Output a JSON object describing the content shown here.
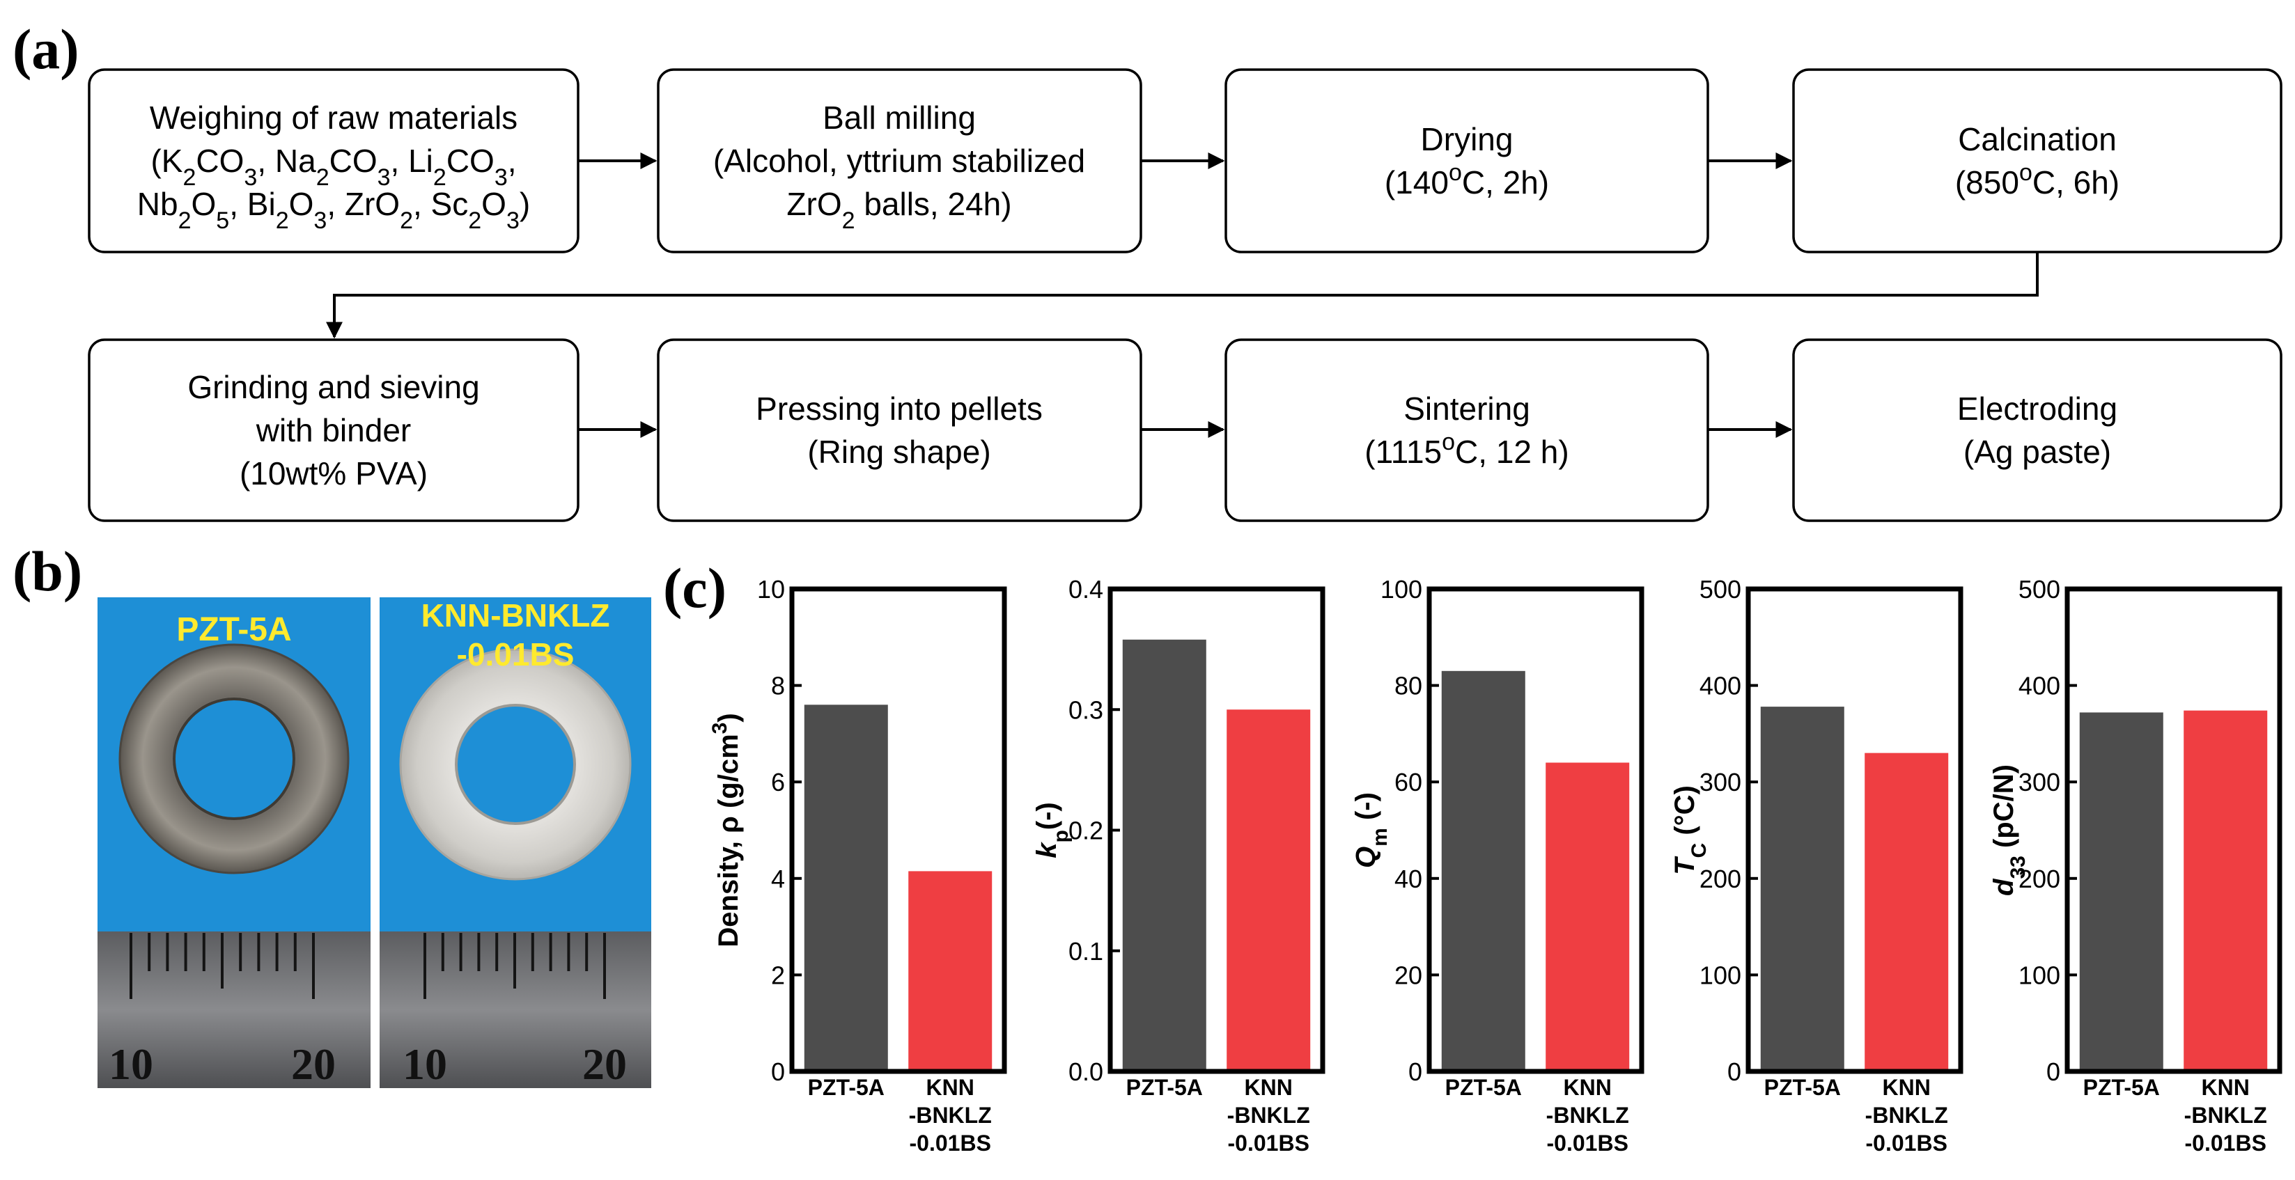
{
  "panel_labels": {
    "a": "(a)",
    "b": "(b)",
    "c": "(c)"
  },
  "flowchart": {
    "steps": [
      {
        "lines": [
          [
            {
              "t": "Weighing of raw materials"
            }
          ],
          [
            {
              "t": "(K"
            },
            {
              "t": "2",
              "s": "sub"
            },
            {
              "t": "CO"
            },
            {
              "t": "3",
              "s": "sub"
            },
            {
              "t": ", Na"
            },
            {
              "t": "2",
              "s": "sub"
            },
            {
              "t": "CO"
            },
            {
              "t": "3",
              "s": "sub"
            },
            {
              "t": ", Li"
            },
            {
              "t": "2",
              "s": "sub"
            },
            {
              "t": "CO"
            },
            {
              "t": "3",
              "s": "sub"
            },
            {
              "t": ","
            }
          ],
          [
            {
              "t": "Nb"
            },
            {
              "t": "2",
              "s": "sub"
            },
            {
              "t": "O"
            },
            {
              "t": "5",
              "s": "sub"
            },
            {
              "t": ", Bi"
            },
            {
              "t": "2",
              "s": "sub"
            },
            {
              "t": "O"
            },
            {
              "t": "3",
              "s": "sub"
            },
            {
              "t": ", ZrO"
            },
            {
              "t": "2",
              "s": "sub"
            },
            {
              "t": ", Sc"
            },
            {
              "t": "2",
              "s": "sub"
            },
            {
              "t": "O"
            },
            {
              "t": "3",
              "s": "sub"
            },
            {
              "t": ")"
            }
          ]
        ]
      },
      {
        "lines": [
          [
            {
              "t": "Ball milling"
            }
          ],
          [
            {
              "t": "(Alcohol, yttrium stabilized"
            }
          ],
          [
            {
              "t": "ZrO"
            },
            {
              "t": "2",
              "s": "sub"
            },
            {
              "t": " balls, 24h)"
            }
          ]
        ]
      },
      {
        "lines": [
          [
            {
              "t": "Drying"
            }
          ],
          [
            {
              "t": "(140"
            },
            {
              "t": "o",
              "s": "sup"
            },
            {
              "t": "C, 2h)"
            }
          ]
        ]
      },
      {
        "lines": [
          [
            {
              "t": "Calcination"
            }
          ],
          [
            {
              "t": "(850"
            },
            {
              "t": "o",
              "s": "sup"
            },
            {
              "t": "C, 6h)"
            }
          ]
        ]
      },
      {
        "lines": [
          [
            {
              "t": "Grinding and sieving"
            }
          ],
          [
            {
              "t": "with binder"
            }
          ],
          [
            {
              "t": "(10wt% PVA)"
            }
          ]
        ]
      },
      {
        "lines": [
          [
            {
              "t": "Pressing into pellets"
            }
          ],
          [
            {
              "t": "(Ring shape)"
            }
          ]
        ]
      },
      {
        "lines": [
          [
            {
              "t": "Sintering"
            }
          ],
          [
            {
              "t": "(1115"
            },
            {
              "t": "o",
              "s": "sup"
            },
            {
              "t": "C, 12 h)"
            }
          ]
        ]
      },
      {
        "lines": [
          [
            {
              "t": "Electroding"
            }
          ],
          [
            {
              "t": "(Ag paste)"
            }
          ]
        ]
      }
    ]
  },
  "photos": {
    "left": {
      "label": "PZT-5A",
      "ruler_numbers": [
        "10",
        "20"
      ]
    },
    "right": {
      "label_line1": "KNN-BNKLZ",
      "label_line2": "-0.01BS",
      "ruler_numbers": [
        "10",
        "20"
      ]
    }
  },
  "colors": {
    "pzt": "#4d4d4d",
    "knn": "#ef3e42",
    "photo_bg": "#1e8fd6",
    "label_yellow": "#ffea2e"
  },
  "chart_data": [
    {
      "type": "bar",
      "ylabel": [
        {
          "t": "Density, ρ (g/cm"
        },
        {
          "t": "3",
          "s": "sup"
        },
        {
          "t": ")"
        }
      ],
      "ylim": [
        0,
        10
      ],
      "yticks": [
        "0",
        "2",
        "4",
        "6",
        "8",
        "10"
      ],
      "categories": [
        [
          "PZT-5A"
        ],
        [
          "KNN",
          "-BNKLZ",
          "-0.01BS"
        ]
      ],
      "values": [
        7.6,
        4.15
      ]
    },
    {
      "type": "bar",
      "ylabel": [
        {
          "t": "k",
          "s": "it"
        },
        {
          "t": "p",
          "s": "sub"
        },
        {
          "t": "(-)"
        }
      ],
      "ylim": [
        0,
        0.4
      ],
      "yticks": [
        "0.0",
        "0.1",
        "0.2",
        "0.3",
        "0.4"
      ],
      "categories": [
        [
          "PZT-5A"
        ],
        [
          "KNN",
          "-BNKLZ",
          "-0.01BS"
        ]
      ],
      "values": [
        0.358,
        0.3
      ]
    },
    {
      "type": "bar",
      "ylabel": [
        {
          "t": "Q",
          "s": "it"
        },
        {
          "t": "m",
          "s": "sub"
        },
        {
          "t": " (-)"
        }
      ],
      "ylim": [
        0,
        100
      ],
      "yticks": [
        "0",
        "20",
        "40",
        "60",
        "80",
        "100"
      ],
      "categories": [
        [
          "PZT-5A"
        ],
        [
          "KNN",
          "-BNKLZ",
          "-0.01BS"
        ]
      ],
      "values": [
        83,
        64
      ]
    },
    {
      "type": "bar",
      "ylabel": [
        {
          "t": "T",
          "s": "it"
        },
        {
          "t": "C",
          "s": "sub"
        },
        {
          "t": " (°C)"
        }
      ],
      "ylim": [
        0,
        500
      ],
      "yticks": [
        "0",
        "100",
        "200",
        "300",
        "400",
        "500"
      ],
      "categories": [
        [
          "PZT-5A"
        ],
        [
          "KNN",
          "-BNKLZ",
          "-0.01BS"
        ]
      ],
      "values": [
        378,
        330
      ]
    },
    {
      "type": "bar",
      "ylabel": [
        {
          "t": "d",
          "s": "it"
        },
        {
          "t": "33",
          "s": "sub"
        },
        {
          "t": " (pC/N)"
        }
      ],
      "ylim": [
        0,
        500
      ],
      "yticks": [
        "0",
        "100",
        "200",
        "300",
        "400",
        "500"
      ],
      "categories": [
        [
          "PZT-5A"
        ],
        [
          "KNN",
          "-BNKLZ",
          "-0.01BS"
        ]
      ],
      "values": [
        372,
        374
      ]
    }
  ]
}
